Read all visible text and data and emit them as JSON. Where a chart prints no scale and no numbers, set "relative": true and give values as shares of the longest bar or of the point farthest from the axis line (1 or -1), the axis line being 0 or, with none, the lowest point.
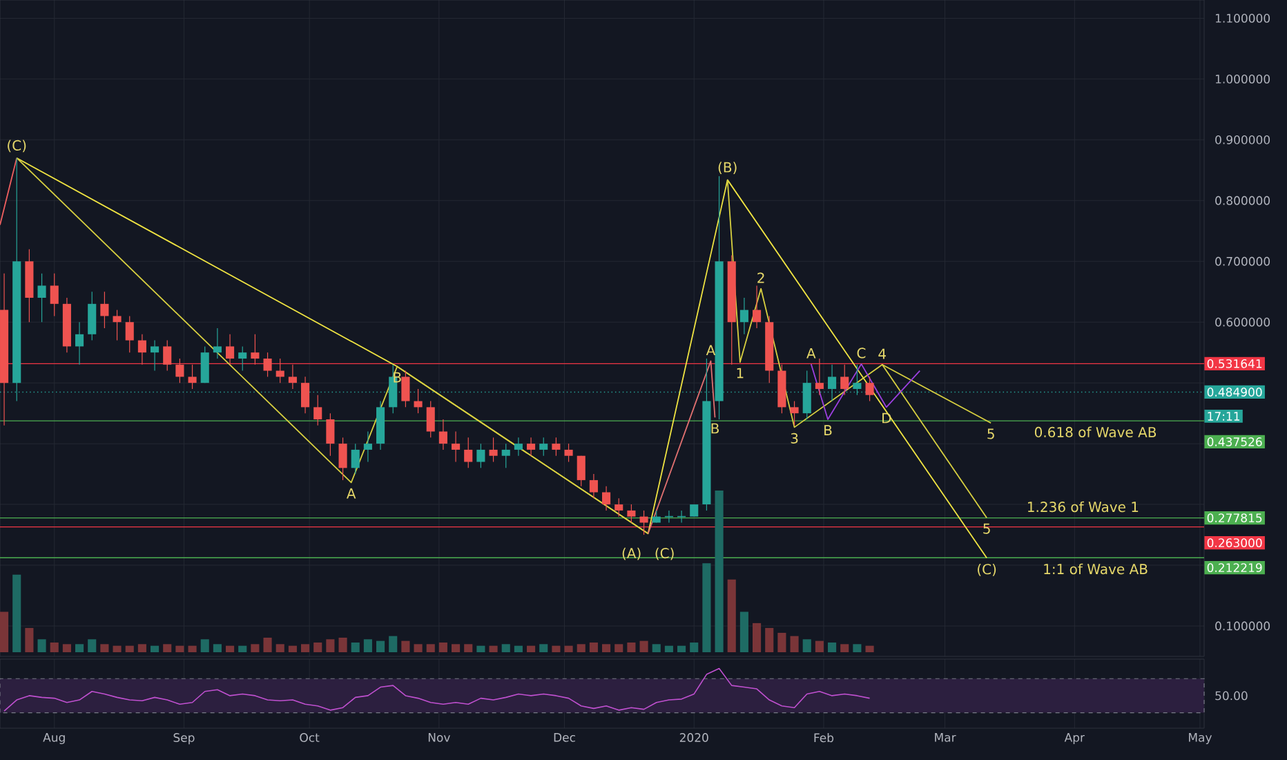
{
  "chart_data": [
    {
      "type": "candlestick",
      "x": [
        "2019-07-20",
        "2019-07-23",
        "2019-07-26",
        "2019-07-29",
        "2019-08-01",
        "2019-08-04",
        "2019-08-07",
        "2019-08-10",
        "2019-08-13",
        "2019-08-16",
        "2019-08-19",
        "2019-08-22",
        "2019-08-25",
        "2019-08-28",
        "2019-08-31",
        "2019-09-03",
        "2019-09-06",
        "2019-09-09",
        "2019-09-12",
        "2019-09-15",
        "2019-09-18",
        "2019-09-21",
        "2019-09-24",
        "2019-09-27",
        "2019-09-30",
        "2019-10-03",
        "2019-10-06",
        "2019-10-09",
        "2019-10-12",
        "2019-10-15",
        "2019-10-18",
        "2019-10-21",
        "2019-10-24",
        "2019-10-27",
        "2019-10-30",
        "2019-11-02",
        "2019-11-05",
        "2019-11-08",
        "2019-11-11",
        "2019-11-14",
        "2019-11-17",
        "2019-11-20",
        "2019-11-23",
        "2019-11-26",
        "2019-11-29",
        "2019-12-02",
        "2019-12-05",
        "2019-12-08",
        "2019-12-11",
        "2019-12-14",
        "2019-12-17",
        "2019-12-20",
        "2019-12-23",
        "2019-12-26",
        "2019-12-29",
        "2020-01-01",
        "2020-01-04",
        "2020-01-07",
        "2020-01-10",
        "2020-01-13",
        "2020-01-16",
        "2020-01-19",
        "2020-01-22",
        "2020-01-25",
        "2020-01-28",
        "2020-01-31",
        "2020-02-03",
        "2020-02-06",
        "2020-02-09",
        "2020-02-12"
      ],
      "ohlc": [
        [
          0.62,
          0.68,
          0.43,
          0.5
        ],
        [
          0.5,
          0.87,
          0.47,
          0.7
        ],
        [
          0.7,
          0.72,
          0.6,
          0.64
        ],
        [
          0.64,
          0.68,
          0.6,
          0.66
        ],
        [
          0.66,
          0.68,
          0.61,
          0.63
        ],
        [
          0.63,
          0.64,
          0.55,
          0.56
        ],
        [
          0.56,
          0.6,
          0.53,
          0.58
        ],
        [
          0.58,
          0.65,
          0.57,
          0.63
        ],
        [
          0.63,
          0.65,
          0.59,
          0.61
        ],
        [
          0.61,
          0.62,
          0.57,
          0.6
        ],
        [
          0.6,
          0.61,
          0.55,
          0.57
        ],
        [
          0.57,
          0.58,
          0.53,
          0.55
        ],
        [
          0.55,
          0.57,
          0.52,
          0.56
        ],
        [
          0.56,
          0.57,
          0.52,
          0.53
        ],
        [
          0.53,
          0.54,
          0.5,
          0.51
        ],
        [
          0.51,
          0.53,
          0.49,
          0.5
        ],
        [
          0.5,
          0.56,
          0.5,
          0.55
        ],
        [
          0.55,
          0.59,
          0.54,
          0.56
        ],
        [
          0.56,
          0.58,
          0.53,
          0.54
        ],
        [
          0.54,
          0.56,
          0.52,
          0.55
        ],
        [
          0.55,
          0.58,
          0.53,
          0.54
        ],
        [
          0.54,
          0.55,
          0.51,
          0.52
        ],
        [
          0.52,
          0.54,
          0.5,
          0.51
        ],
        [
          0.51,
          0.53,
          0.49,
          0.5
        ],
        [
          0.5,
          0.51,
          0.45,
          0.46
        ],
        [
          0.46,
          0.48,
          0.43,
          0.44
        ],
        [
          0.44,
          0.45,
          0.38,
          0.4
        ],
        [
          0.4,
          0.41,
          0.34,
          0.36
        ],
        [
          0.36,
          0.4,
          0.35,
          0.39
        ],
        [
          0.39,
          0.42,
          0.37,
          0.4
        ],
        [
          0.4,
          0.47,
          0.39,
          0.46
        ],
        [
          0.46,
          0.53,
          0.45,
          0.51
        ],
        [
          0.51,
          0.52,
          0.46,
          0.47
        ],
        [
          0.47,
          0.49,
          0.45,
          0.46
        ],
        [
          0.46,
          0.47,
          0.41,
          0.42
        ],
        [
          0.42,
          0.44,
          0.39,
          0.4
        ],
        [
          0.4,
          0.42,
          0.37,
          0.39
        ],
        [
          0.39,
          0.41,
          0.36,
          0.37
        ],
        [
          0.37,
          0.4,
          0.36,
          0.39
        ],
        [
          0.39,
          0.41,
          0.37,
          0.38
        ],
        [
          0.38,
          0.4,
          0.36,
          0.39
        ],
        [
          0.39,
          0.41,
          0.38,
          0.4
        ],
        [
          0.4,
          0.41,
          0.38,
          0.39
        ],
        [
          0.39,
          0.41,
          0.38,
          0.4
        ],
        [
          0.4,
          0.41,
          0.38,
          0.39
        ],
        [
          0.39,
          0.4,
          0.37,
          0.38
        ],
        [
          0.38,
          0.38,
          0.33,
          0.34
        ],
        [
          0.34,
          0.35,
          0.31,
          0.32
        ],
        [
          0.32,
          0.33,
          0.29,
          0.3
        ],
        [
          0.3,
          0.31,
          0.28,
          0.29
        ],
        [
          0.29,
          0.3,
          0.27,
          0.28
        ],
        [
          0.28,
          0.29,
          0.25,
          0.27
        ],
        [
          0.27,
          0.29,
          0.27,
          0.28
        ],
        [
          0.28,
          0.29,
          0.27,
          0.28
        ],
        [
          0.28,
          0.29,
          0.27,
          0.28
        ],
        [
          0.28,
          0.3,
          0.28,
          0.3
        ],
        [
          0.3,
          0.54,
          0.29,
          0.47
        ],
        [
          0.47,
          0.84,
          0.44,
          0.7
        ],
        [
          0.7,
          0.71,
          0.53,
          0.6
        ],
        [
          0.6,
          0.64,
          0.58,
          0.62
        ],
        [
          0.62,
          0.66,
          0.59,
          0.6
        ],
        [
          0.6,
          0.61,
          0.5,
          0.52
        ],
        [
          0.52,
          0.53,
          0.45,
          0.46
        ],
        [
          0.46,
          0.47,
          0.43,
          0.45
        ],
        [
          0.45,
          0.52,
          0.44,
          0.5
        ],
        [
          0.5,
          0.54,
          0.48,
          0.49
        ],
        [
          0.49,
          0.53,
          0.47,
          0.51
        ],
        [
          0.51,
          0.53,
          0.48,
          0.49
        ],
        [
          0.49,
          0.53,
          0.48,
          0.5
        ],
        [
          0.5,
          0.51,
          0.47,
          0.48
        ]
      ],
      "series": [
        {
          "type": "line",
          "color": "#f0e442",
          "x": [
            "2019-07-23",
            "2019-10-22",
            "2019-12-21",
            "2020-01-09",
            "2020-03-11"
          ],
          "values": [
            0.87,
            0.527,
            0.252,
            0.834,
            0.212
          ]
        },
        {
          "type": "line",
          "color": "#d8d040",
          "x": [
            "2019-07-23",
            "2019-10-11",
            "2019-10-22",
            "2019-12-21"
          ],
          "values": [
            0.87,
            0.336,
            0.527,
            0.252
          ]
        },
        {
          "type": "line",
          "color": "#d8d040",
          "x": [
            "2020-01-09",
            "2020-01-12",
            "2020-01-17",
            "2020-01-25",
            "2020-02-15",
            "2020-03-12"
          ],
          "values": [
            0.834,
            0.534,
            0.655,
            0.427,
            0.53,
            0.434
          ]
        },
        {
          "type": "line",
          "color": "#d8d040",
          "x": [
            "2020-02-15",
            "2020-03-11"
          ],
          "values": [
            0.53,
            0.278
          ]
        },
        {
          "type": "line",
          "color": "#f06060",
          "x": [
            "2019-07-19",
            "2019-07-23"
          ],
          "values": [
            0.76,
            0.87
          ]
        },
        {
          "type": "line",
          "color": "#e07070",
          "x": [
            "2019-12-21",
            "2020-01-05",
            "2020-01-06"
          ],
          "values": [
            0.252,
            0.536,
            0.443
          ]
        },
        {
          "type": "line",
          "color": "#9c40e0",
          "x": [
            "2020-01-29",
            "2020-02-02",
            "2020-02-10",
            "2020-02-16",
            "2020-02-24"
          ],
          "values": [
            0.531,
            0.44,
            0.531,
            0.46,
            0.52
          ]
        }
      ],
      "xlim": [
        "2019-07-19",
        "2020-05-02"
      ],
      "ylim": [
        0.05,
        1.13
      ],
      "xticks": [
        {
          "value": "2019-08-01",
          "label": null
        },
        {
          "value": "2019-09-01",
          "label": null
        },
        {
          "value": "2019-10-01",
          "label": null
        },
        {
          "value": "2019-11-01",
          "label": null
        },
        {
          "value": "2019-12-01",
          "label": null
        },
        {
          "value": "2020-01-01",
          "label": null
        },
        {
          "value": "2020-02-01",
          "label": null
        },
        {
          "value": "2020-03-01",
          "label": null
        },
        {
          "value": "2020-04-01",
          "label": null
        },
        {
          "value": "2020-05-01",
          "label": null
        }
      ],
      "yticks": [
        {
          "value": 0.1,
          "label": "0.100000"
        },
        {
          "value": 0.2,
          "label": null
        },
        {
          "value": 0.3,
          "label": null
        },
        {
          "value": 0.4,
          "label": null
        },
        {
          "value": 0.5,
          "label": null
        },
        {
          "value": 0.6,
          "label": "0.600000"
        },
        {
          "value": 0.7,
          "label": "0.700000"
        },
        {
          "value": 0.8,
          "label": "0.800000"
        },
        {
          "value": 0.9,
          "label": "0.900000"
        },
        {
          "value": 1.0,
          "label": "1.000000"
        },
        {
          "value": 1.1,
          "label": "1.100000"
        }
      ],
      "grid": true,
      "tick_labels": "y",
      "ref_lines": [
        {
          "axis": "y",
          "value": 0.531641,
          "label": "0.531641",
          "color": "#f23645"
        },
        {
          "axis": "y",
          "value": 0.4849,
          "label": "0.484900",
          "color": "#26a69a",
          "line_style": "dotted"
        },
        {
          "axis": "y",
          "value": 0.437526,
          "label": "0.437526",
          "color": "#4caf50"
        },
        {
          "axis": "y",
          "value": 0.277815,
          "label": "0.277815",
          "color": "#4caf50"
        },
        {
          "axis": "y",
          "value": 0.263,
          "label": "0.263000",
          "color": "#f23645"
        },
        {
          "axis": "y",
          "value": 0.212219,
          "label": "0.212219",
          "color": "#4caf50"
        }
      ],
      "annotations": [
        {
          "text": "(C)",
          "x": "2019-07-23",
          "y": 0.87
        },
        {
          "text": "A",
          "x": "2019-10-11",
          "y": 0.336
        },
        {
          "text": "B",
          "x": "2019-10-22",
          "y": 0.527
        },
        {
          "text": "(A)",
          "x": "2019-12-21",
          "y": 0.252
        },
        {
          "text": "(C)",
          "x": "2019-12-21",
          "y": 0.252
        },
        {
          "text": "(B)",
          "x": "2020-01-09",
          "y": 0.834
        },
        {
          "text": "A",
          "x": "2020-01-05",
          "y": 0.536
        },
        {
          "text": "B",
          "x": "2020-01-06",
          "y": 0.443
        },
        {
          "text": "1",
          "x": "2020-01-12",
          "y": 0.534
        },
        {
          "text": "2",
          "x": "2020-01-17",
          "y": 0.655
        },
        {
          "text": "3",
          "x": "2020-01-25",
          "y": 0.427
        },
        {
          "text": "A",
          "x": "2020-01-29",
          "y": 0.531
        },
        {
          "text": "B",
          "x": "2020-02-02",
          "y": 0.44
        },
        {
          "text": "C",
          "x": "2020-02-10",
          "y": 0.531
        },
        {
          "text": "D",
          "x": "2020-02-16",
          "y": 0.46
        },
        {
          "text": "4",
          "x": "2020-02-15",
          "y": 0.53
        },
        {
          "text": "5",
          "x": "2020-03-12",
          "y": 0.434
        },
        {
          "text": "0.618 of Wave AB",
          "x": "2020-04-06",
          "y": 0.437526
        },
        {
          "text": "1.236 of Wave 1",
          "x": "2020-04-03",
          "y": 0.277815
        },
        {
          "text": "5",
          "x": "2020-03-11",
          "y": 0.278
        },
        {
          "text": "(C)",
          "x": "2020-03-11",
          "y": 0.212
        },
        {
          "text": "1:1 of Wave AB",
          "x": "2020-04-06",
          "y": 0.212219
        },
        "17:11"
      ]
    },
    {
      "type": "bar",
      "relative": true,
      "tick_labels": false,
      "xlim": [
        "2019-07-19",
        "2020-05-02"
      ],
      "x": [
        "2019-07-20",
        "2019-07-23",
        "2019-07-26",
        "2019-07-29",
        "2019-08-01",
        "2019-08-04",
        "2019-08-07",
        "2019-08-10",
        "2019-08-13",
        "2019-08-16",
        "2019-08-19",
        "2019-08-22",
        "2019-08-25",
        "2019-08-28",
        "2019-08-31",
        "2019-09-03",
        "2019-09-06",
        "2019-09-09",
        "2019-09-12",
        "2019-09-15",
        "2019-09-18",
        "2019-09-21",
        "2019-09-24",
        "2019-09-27",
        "2019-09-30",
        "2019-10-03",
        "2019-10-06",
        "2019-10-09",
        "2019-10-12",
        "2019-10-15",
        "2019-10-18",
        "2019-10-21",
        "2019-10-24",
        "2019-10-27",
        "2019-10-30",
        "2019-11-02",
        "2019-11-05",
        "2019-11-08",
        "2019-11-11",
        "2019-11-14",
        "2019-11-17",
        "2019-11-20",
        "2019-11-23",
        "2019-11-26",
        "2019-11-29",
        "2019-12-02",
        "2019-12-05",
        "2019-12-08",
        "2019-12-11",
        "2019-12-14",
        "2019-12-17",
        "2019-12-20",
        "2019-12-23",
        "2019-12-26",
        "2019-12-29",
        "2020-01-01",
        "2020-01-04",
        "2020-01-07",
        "2020-01-10",
        "2020-01-13",
        "2020-01-16",
        "2020-01-19",
        "2020-01-22",
        "2020-01-25",
        "2020-01-28",
        "2020-01-31",
        "2020-02-03",
        "2020-02-06",
        "2020-02-09",
        "2020-02-12"
      ],
      "values": [
        0.25,
        0.48,
        0.15,
        0.08,
        0.06,
        0.05,
        0.05,
        0.08,
        0.05,
        0.04,
        0.04,
        0.05,
        0.04,
        0.05,
        0.04,
        0.04,
        0.08,
        0.05,
        0.04,
        0.04,
        0.05,
        0.09,
        0.05,
        0.04,
        0.05,
        0.06,
        0.08,
        0.09,
        0.06,
        0.08,
        0.07,
        0.1,
        0.07,
        0.05,
        0.05,
        0.06,
        0.05,
        0.05,
        0.04,
        0.04,
        0.05,
        0.04,
        0.04,
        0.05,
        0.04,
        0.04,
        0.05,
        0.06,
        0.05,
        0.05,
        0.06,
        0.07,
        0.05,
        0.04,
        0.04,
        0.06,
        0.55,
        1.0,
        0.45,
        0.25,
        0.18,
        0.15,
        0.12,
        0.1,
        0.08,
        0.07,
        0.06,
        0.05,
        0.05,
        0.04
      ],
      "colors": [
        "#7a3538",
        "#1e6b64",
        "#7a3538",
        "#1e6b64",
        "#7a3538",
        "#7a3538",
        "#1e6b64",
        "#1e6b64",
        "#7a3538",
        "#7a3538",
        "#7a3538",
        "#7a3538",
        "#1e6b64",
        "#7a3538",
        "#7a3538",
        "#7a3538",
        "#1e6b64",
        "#1e6b64",
        "#7a3538",
        "#1e6b64",
        "#7a3538",
        "#7a3538",
        "#7a3538",
        "#7a3538",
        "#7a3538",
        "#7a3538",
        "#7a3538",
        "#7a3538",
        "#1e6b64",
        "#1e6b64",
        "#1e6b64",
        "#1e6b64",
        "#7a3538",
        "#7a3538",
        "#7a3538",
        "#7a3538",
        "#7a3538",
        "#7a3538",
        "#1e6b64",
        "#7a3538",
        "#1e6b64",
        "#1e6b64",
        "#7a3538",
        "#1e6b64",
        "#7a3538",
        "#7a3538",
        "#7a3538",
        "#7a3538",
        "#7a3538",
        "#7a3538",
        "#7a3538",
        "#7a3538",
        "#1e6b64",
        "#1e6b64",
        "#1e6b64",
        "#1e6b64",
        "#1e6b64",
        "#1e6b64",
        "#7a3538",
        "#1e6b64",
        "#7a3538",
        "#7a3538",
        "#7a3538",
        "#7a3538",
        "#1e6b64",
        "#7a3538",
        "#1e6b64",
        "#7a3538",
        "#1e6b64",
        "#7a3538"
      ]
    },
    {
      "type": "line",
      "relative": true,
      "color": "#c050d0",
      "xlim": [
        "2019-07-19",
        "2020-05-02"
      ],
      "x": [
        "2019-07-20",
        "2019-07-23",
        "2019-07-26",
        "2019-07-29",
        "2019-08-01",
        "2019-08-04",
        "2019-08-07",
        "2019-08-10",
        "2019-08-13",
        "2019-08-16",
        "2019-08-19",
        "2019-08-22",
        "2019-08-25",
        "2019-08-28",
        "2019-08-31",
        "2019-09-03",
        "2019-09-06",
        "2019-09-09",
        "2019-09-12",
        "2019-09-15",
        "2019-09-18",
        "2019-09-21",
        "2019-09-24",
        "2019-09-27",
        "2019-09-30",
        "2019-10-03",
        "2019-10-06",
        "2019-10-09",
        "2019-10-12",
        "2019-10-15",
        "2019-10-18",
        "2019-10-21",
        "2019-10-24",
        "2019-10-27",
        "2019-10-30",
        "2019-11-02",
        "2019-11-05",
        "2019-11-08",
        "2019-11-11",
        "2019-11-14",
        "2019-11-17",
        "2019-11-20",
        "2019-11-23",
        "2019-11-26",
        "2019-11-29",
        "2019-12-02",
        "2019-12-05",
        "2019-12-08",
        "2019-12-11",
        "2019-12-14",
        "2019-12-17",
        "2019-12-20",
        "2019-12-23",
        "2019-12-26",
        "2019-12-29",
        "2020-01-01",
        "2020-01-04",
        "2020-01-07",
        "2020-01-10",
        "2020-01-13",
        "2020-01-16",
        "2020-01-19",
        "2020-01-22",
        "2020-01-25",
        "2020-01-28",
        "2020-01-31",
        "2020-02-03",
        "2020-02-06",
        "2020-02-09",
        "2020-02-12"
      ],
      "values": [
        0,
        0.26,
        0.36,
        0.32,
        0.3,
        0.2,
        0.26,
        0.46,
        0.4,
        0.32,
        0.26,
        0.24,
        0.32,
        0.26,
        0.16,
        0.2,
        0.46,
        0.5,
        0.36,
        0.4,
        0.36,
        0.26,
        0.24,
        0.26,
        0.16,
        0.12,
        0.02,
        0.08,
        0.32,
        0.36,
        0.56,
        0.6,
        0.36,
        0.3,
        0.2,
        0.16,
        0.2,
        0.16,
        0.3,
        0.26,
        0.32,
        0.4,
        0.36,
        0.4,
        0.36,
        0.3,
        0.12,
        0.06,
        0.12,
        0.02,
        0.08,
        0.04,
        0.2,
        0.26,
        0.28,
        0.4,
        0.86,
        1,
        0.6,
        0.56,
        0.52,
        0.26,
        0.12,
        0.08,
        0.4,
        0.46,
        0.36,
        0.4,
        0.36,
        0.3
      ],
      "xticks": [
        {
          "value": "2019-08-01",
          "label": "Aug"
        },
        {
          "value": "2019-09-01",
          "label": "Sep"
        },
        {
          "value": "2019-10-01",
          "label": "Oct"
        },
        {
          "value": "2019-11-01",
          "label": "Nov"
        },
        {
          "value": "2019-12-01",
          "label": "Dec"
        },
        {
          "value": "2020-01-01",
          "label": "2020"
        },
        {
          "value": "2020-02-01",
          "label": "Feb"
        },
        {
          "value": "2020-03-01",
          "label": "Mar"
        },
        {
          "value": "2020-04-01",
          "label": "Apr"
        },
        {
          "value": "2020-05-01",
          "label": "May"
        }
      ],
      "grid": "x",
      "bands": [
        {
          "axis": "y",
          "from": -0.04,
          "to": 0.76,
          "color": "#2c1f3f"
        }
      ],
      "annotations": [
        "50.00"
      ]
    }
  ]
}
